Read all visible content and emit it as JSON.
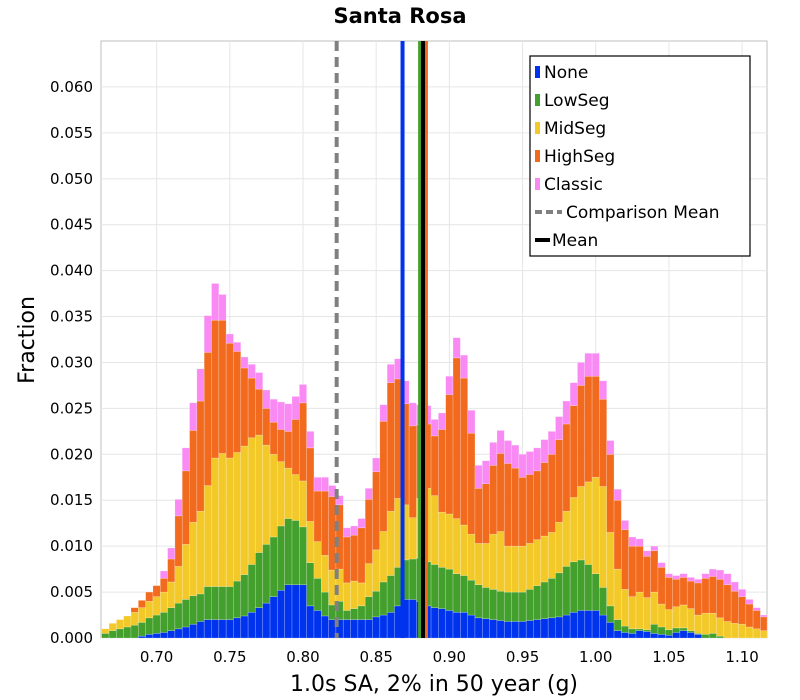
{
  "chart_data": {
    "type": "bar",
    "stacked": true,
    "title": "Santa Rosa",
    "xlabel": "1.0s SA, 2% in 50 year (g)",
    "ylabel": "Fraction",
    "xlim": [
      0.662,
      1.117
    ],
    "ylim": [
      0,
      0.065
    ],
    "bin_width": 0.005,
    "grid": true,
    "legend_position": "top-right",
    "xticks": [
      "0.70",
      "0.75",
      "0.80",
      "0.85",
      "0.90",
      "0.95",
      "1.00",
      "1.05",
      "1.10"
    ],
    "yticks": [
      "0.000",
      "0.005",
      "0.010",
      "0.015",
      "0.020",
      "0.025",
      "0.030",
      "0.035",
      "0.040",
      "0.045",
      "0.050",
      "0.055",
      "0.060"
    ],
    "x": [
      0.665,
      0.67,
      0.675,
      0.68,
      0.685,
      0.69,
      0.695,
      0.7,
      0.705,
      0.71,
      0.715,
      0.72,
      0.725,
      0.73,
      0.735,
      0.74,
      0.745,
      0.75,
      0.755,
      0.76,
      0.765,
      0.77,
      0.775,
      0.78,
      0.785,
      0.79,
      0.795,
      0.8,
      0.805,
      0.81,
      0.815,
      0.82,
      0.825,
      0.83,
      0.835,
      0.84,
      0.845,
      0.85,
      0.855,
      0.86,
      0.865,
      0.87,
      0.875,
      0.88,
      0.885,
      0.89,
      0.895,
      0.9,
      0.905,
      0.91,
      0.915,
      0.92,
      0.925,
      0.93,
      0.935,
      0.94,
      0.945,
      0.95,
      0.955,
      0.96,
      0.965,
      0.97,
      0.975,
      0.98,
      0.985,
      0.99,
      0.995,
      1.0,
      1.005,
      1.01,
      1.015,
      1.02,
      1.025,
      1.03,
      1.035,
      1.04,
      1.045,
      1.05,
      1.055,
      1.06,
      1.065,
      1.07,
      1.075,
      1.08,
      1.085,
      1.09,
      1.095,
      1.1,
      1.105,
      1.11,
      1.115
    ],
    "series": [
      {
        "name": "None",
        "color": "#0033ee",
        "values": [
          0,
          0,
          0,
          0,
          0,
          0.0002,
          0.0004,
          0.0005,
          0.0006,
          0.0008,
          0.001,
          0.0012,
          0.0015,
          0.0018,
          0.002,
          0.002,
          0.002,
          0.002,
          0.0022,
          0.0024,
          0.0028,
          0.0033,
          0.0038,
          0.0045,
          0.0052,
          0.0058,
          0.0058,
          0.0058,
          0.0035,
          0.003,
          0.0024,
          0.002,
          0.002,
          0.002,
          0.002,
          0.002,
          0.002,
          0.0023,
          0.0025,
          0.0028,
          0.0035,
          0.0042,
          0.0042,
          0.004,
          0.0035,
          0.0033,
          0.0032,
          0.003,
          0.0028,
          0.0028,
          0.0025,
          0.0022,
          0.0021,
          0.002,
          0.0019,
          0.0018,
          0.0018,
          0.0018,
          0.0019,
          0.002,
          0.0021,
          0.0022,
          0.0023,
          0.0025,
          0.0028,
          0.003,
          0.003,
          0.003,
          0.0025,
          0.0017,
          0.0008,
          0.0006,
          0.0005,
          0.0008,
          0.0007,
          0.0005,
          0.0004,
          0.0003,
          0.0006,
          0.0008,
          0.0006,
          0.0004,
          0,
          0,
          0,
          0,
          0,
          0,
          0,
          0,
          0
        ]
      },
      {
        "name": "LowSeg",
        "color": "#44a02d",
        "values": [
          0.0005,
          0.0008,
          0.001,
          0.0012,
          0.0014,
          0.0015,
          0.0018,
          0.002,
          0.0022,
          0.0025,
          0.0028,
          0.003,
          0.0031,
          0.003,
          0.0036,
          0.0036,
          0.0036,
          0.0036,
          0.004,
          0.0045,
          0.0052,
          0.006,
          0.0064,
          0.0065,
          0.007,
          0.0072,
          0.007,
          0.0063,
          0.0047,
          0.0035,
          0.0026,
          0.0016,
          0.002,
          0.001,
          0.0012,
          0.0015,
          0.0025,
          0.0028,
          0.0036,
          0.004,
          0.0042,
          0.0043,
          0.0044,
          0.0047,
          0.0048,
          0.0047,
          0.0045,
          0.0045,
          0.0042,
          0.004,
          0.0038,
          0.0036,
          0.0034,
          0.0033,
          0.0032,
          0.0032,
          0.0032,
          0.0032,
          0.0034,
          0.0037,
          0.004,
          0.0043,
          0.0048,
          0.0053,
          0.0055,
          0.0055,
          0.005,
          0.004,
          0.003,
          0.0018,
          0.0012,
          0.0007,
          0.0005,
          0.0002,
          0.0002,
          0.001,
          0.0008,
          0.0006,
          0.0005,
          0.0003,
          0.0002,
          0.0001,
          0.0004,
          0.0005,
          0.0002,
          0,
          0,
          0,
          0,
          0,
          0
        ]
      },
      {
        "name": "MidSeg",
        "color": "#f2c928",
        "values": [
          0.0005,
          0.0008,
          0.001,
          0.0012,
          0.0014,
          0.0016,
          0.0018,
          0.002,
          0.0022,
          0.0028,
          0.004,
          0.006,
          0.008,
          0.009,
          0.011,
          0.014,
          0.0145,
          0.014,
          0.014,
          0.014,
          0.0138,
          0.0128,
          0.0108,
          0.009,
          0.007,
          0.0055,
          0.005,
          0.005,
          0.0045,
          0.004,
          0.004,
          0.0038,
          0.0035,
          0.003,
          0.003,
          0.0025,
          0.0036,
          0.0045,
          0.0055,
          0.007,
          0.0075,
          0.006,
          0.0045,
          0.0065,
          0.008,
          0.0075,
          0.006,
          0.006,
          0.006,
          0.0055,
          0.005,
          0.0045,
          0.0048,
          0.006,
          0.0065,
          0.005,
          0.005,
          0.005,
          0.005,
          0.005,
          0.005,
          0.005,
          0.0055,
          0.006,
          0.007,
          0.008,
          0.009,
          0.0105,
          0.011,
          0.008,
          0.0055,
          0.004,
          0.0035,
          0.004,
          0.0035,
          0.0035,
          0.0025,
          0.0022,
          0.0023,
          0.0025,
          0.0024,
          0.002,
          0.0023,
          0.0022,
          0.002,
          0.0018,
          0.0016,
          0.0015,
          0.0012,
          0.001,
          0.0008
        ]
      },
      {
        "name": "HighSeg",
        "color": "#f26a1e",
        "values": [
          0,
          0,
          0,
          0,
          0.0005,
          0.0008,
          0.001,
          0.0012,
          0.0015,
          0.0025,
          0.0055,
          0.008,
          0.01,
          0.012,
          0.0145,
          0.015,
          0.0145,
          0.0125,
          0.011,
          0.0085,
          0.0065,
          0.005,
          0.004,
          0.0035,
          0.0035,
          0.004,
          0.006,
          0.0085,
          0.008,
          0.0055,
          0.007,
          0.008,
          0.007,
          0.005,
          0.005,
          0.006,
          0.007,
          0.0085,
          0.012,
          0.014,
          0.013,
          0.011,
          0.01,
          0.008,
          0.007,
          0.0065,
          0.009,
          0.013,
          0.0175,
          0.016,
          0.011,
          0.006,
          0.0065,
          0.0075,
          0.0085,
          0.009,
          0.0085,
          0.0075,
          0.0075,
          0.0075,
          0.008,
          0.0085,
          0.009,
          0.0095,
          0.01,
          0.011,
          0.0115,
          0.011,
          0.0095,
          0.0085,
          0.0075,
          0.0065,
          0.0055,
          0.005,
          0.0045,
          0.0045,
          0.004,
          0.0035,
          0.003,
          0.003,
          0.003,
          0.0035,
          0.0038,
          0.004,
          0.0042,
          0.004,
          0.0035,
          0.003,
          0.0025,
          0.002,
          0.0015
        ]
      },
      {
        "name": "Classic",
        "color": "#f98af4",
        "values": [
          0,
          0,
          0,
          0,
          0,
          0,
          0,
          0,
          0.0008,
          0.0012,
          0.0018,
          0.0025,
          0.003,
          0.0035,
          0.004,
          0.004,
          0.0028,
          0.001,
          0.001,
          0.0012,
          0.0015,
          0.0018,
          0.002,
          0.0025,
          0.003,
          0.003,
          0.0025,
          0.002,
          0.0018,
          0.0015,
          0.0015,
          0.0012,
          0.001,
          0.001,
          0.001,
          0.001,
          0.0012,
          0.0015,
          0.0018,
          0.002,
          0.0022,
          0.0025,
          0.0025,
          0.0022,
          0.002,
          0.0018,
          0.0018,
          0.002,
          0.0022,
          0.0025,
          0.0025,
          0.0025,
          0.0025,
          0.0025,
          0.0025,
          0.0025,
          0.0025,
          0.0025,
          0.0025,
          0.0025,
          0.0025,
          0.0025,
          0.0025,
          0.0025,
          0.0025,
          0.0025,
          0.0025,
          0.0025,
          0.002,
          0.0015,
          0.0012,
          0.001,
          0.001,
          0.0008,
          0.0006,
          0.0005,
          0.0005,
          0.0004,
          0.0004,
          0.0004,
          0.0004,
          0.0004,
          0.0005,
          0.0008,
          0.001,
          0.0012,
          0.001,
          0.0008,
          0.0005,
          0.0003,
          0.0002
        ]
      }
    ],
    "vlines": [
      {
        "name": "Comparison Mean",
        "x": 0.823,
        "color": "#808080",
        "style": "dashed"
      },
      {
        "name": "None",
        "x": 0.868,
        "color": "#0033ee",
        "style": "solid"
      },
      {
        "name": "LowSeg",
        "x": 0.88,
        "color": "#44a02d",
        "style": "solid"
      },
      {
        "name": "HighSeg",
        "x": 0.884,
        "color": "#f26a1e",
        "style": "solid"
      },
      {
        "name": "Mean",
        "x": 0.882,
        "color": "#000000",
        "style": "solid"
      }
    ],
    "legend": [
      {
        "label": "None",
        "color": "#0033ee",
        "marker": "bar"
      },
      {
        "label": "LowSeg",
        "color": "#44a02d",
        "marker": "bar"
      },
      {
        "label": "MidSeg",
        "color": "#f2c928",
        "marker": "bar"
      },
      {
        "label": "HighSeg",
        "color": "#f26a1e",
        "marker": "bar"
      },
      {
        "label": "Classic",
        "color": "#f98af4",
        "marker": "bar"
      },
      {
        "label": "Comparison Mean",
        "color": "#808080",
        "marker": "dashed-line"
      },
      {
        "label": "Mean",
        "color": "#000000",
        "marker": "solid-line"
      }
    ]
  }
}
